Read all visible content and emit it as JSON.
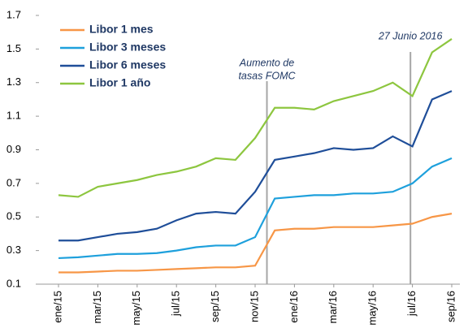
{
  "chart_data": {
    "type": "line",
    "categories": [
      "ene/15",
      null,
      "mar/15",
      null,
      "may/15",
      null,
      "jul/15",
      null,
      "sep/15",
      null,
      "nov/15",
      null,
      "ene/16",
      null,
      "mar/16",
      null,
      "may/16",
      null,
      "jul/16",
      null,
      "sep/16"
    ],
    "series": [
      {
        "name": "Libor 1 mes",
        "color": "#f79646",
        "values": [
          0.17,
          0.17,
          0.175,
          0.18,
          0.18,
          0.185,
          0.19,
          0.195,
          0.2,
          0.2,
          0.21,
          0.42,
          0.43,
          0.43,
          0.44,
          0.44,
          0.44,
          0.45,
          0.46,
          0.5,
          0.52
        ]
      },
      {
        "name": "Libor 3 meses",
        "color": "#1ea0dc",
        "values": [
          0.255,
          0.26,
          0.27,
          0.28,
          0.28,
          0.285,
          0.3,
          0.32,
          0.33,
          0.33,
          0.38,
          0.61,
          0.62,
          0.63,
          0.63,
          0.64,
          0.64,
          0.65,
          0.7,
          0.8,
          0.85
        ]
      },
      {
        "name": "Libor 6 meses",
        "color": "#1f4e99",
        "values": [
          0.36,
          0.36,
          0.38,
          0.4,
          0.41,
          0.43,
          0.48,
          0.52,
          0.53,
          0.52,
          0.65,
          0.84,
          0.86,
          0.88,
          0.91,
          0.9,
          0.91,
          0.98,
          0.92,
          1.2,
          1.25
        ]
      },
      {
        "name": "Libor 1 año",
        "color": "#8dc63f",
        "values": [
          0.63,
          0.62,
          0.68,
          0.7,
          0.72,
          0.75,
          0.77,
          0.8,
          0.85,
          0.84,
          0.97,
          1.15,
          1.15,
          1.14,
          1.19,
          1.22,
          1.25,
          1.3,
          1.22,
          1.48,
          1.56
        ]
      }
    ],
    "ylim": [
      0.1,
      1.7
    ],
    "yticks": [
      0.1,
      0.3,
      0.5,
      0.7,
      0.9,
      1.1,
      1.3,
      1.5,
      1.7
    ],
    "annotations": [
      "Aumento de",
      "tasas FOMC",
      "27 Junio 2016"
    ],
    "grid": false,
    "legend": "top-left"
  }
}
